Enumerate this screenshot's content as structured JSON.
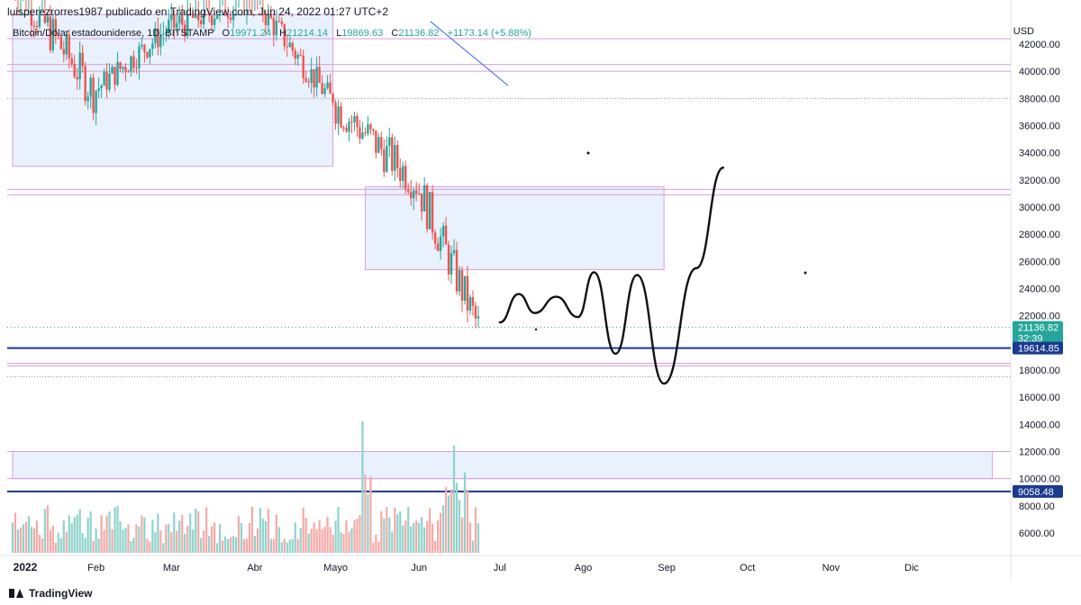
{
  "header": {
    "published": "luisperezrorres1987 publicado en TradingView.com, Jun 24, 2022 01:27 UTC+2",
    "symbol": "Bitcoin/Dólar estadounidense, 1D, BITSTAMP",
    "ohlc": {
      "o_label": "O",
      "o_value": "19971.24",
      "h_label": "H",
      "h_value": "21214.14",
      "l_label": "L",
      "l_value": "19869.63",
      "c_label": "C",
      "c_value": "21136.82",
      "change": "+1173.14 (+5.88%)"
    }
  },
  "currency": "USD",
  "footer": {
    "brand": "TradingView"
  },
  "colors": {
    "up": "#26a69a",
    "down": "#ef5350",
    "zone_fill": "#e9f1fc",
    "zone_border": "#d79ee0",
    "support_line": "#1a3a8f",
    "price_tag": "#26a69a",
    "drawing": "#111111"
  },
  "chart_data": {
    "type": "candlestick",
    "y_axis": {
      "ticks": [
        "42000.00",
        "40000.00",
        "38000.00",
        "36000.00",
        "34000.00",
        "32000.00",
        "30000.00",
        "28000.00",
        "26000.00",
        "24000.00",
        "22000.00",
        "18000.00",
        "16000.00",
        "14000.00",
        "12000.00",
        "10000.00",
        "8000.00",
        "6000.00"
      ],
      "range": [
        4500,
        44500
      ]
    },
    "x_axis": {
      "labels": [
        "2022",
        "Feb",
        "Mar",
        "Abr",
        "Mayo",
        "Jun",
        "Jul",
        "Ago",
        "Sep",
        "Oct",
        "Nov",
        "Dic"
      ]
    },
    "price_tags": [
      {
        "label": "21136.82",
        "sub": "32:39",
        "value": 21136.82
      },
      {
        "label": "19614.85",
        "value": 19614.85
      },
      {
        "label": "9058.48",
        "value": 9058.48
      }
    ],
    "horizontal_levels": [
      42400,
      40500,
      40000,
      38000,
      31300,
      30900,
      19614.85,
      18500,
      18300,
      17500,
      12000,
      10000,
      9058.48
    ],
    "zones": [
      {
        "from": "2022-01-01",
        "to": "2022-04-30",
        "low": 33000,
        "high": 44500
      },
      {
        "from": "2022-05-12",
        "to": "2022-08-31",
        "low": 25400,
        "high": 31500
      },
      {
        "from": "2022-01-01",
        "to": "2022-12-31",
        "low": 10000,
        "high": 12000
      }
    ],
    "candles_monthly_path": [
      {
        "month": "Ene",
        "open": 47000,
        "high": 47500,
        "low": 33000,
        "close": 38500
      },
      {
        "month": "Feb",
        "open": 38500,
        "high": 45500,
        "low": 36500,
        "close": 43200
      },
      {
        "month": "Mar",
        "open": 43200,
        "high": 48000,
        "low": 37200,
        "close": 45500
      },
      {
        "month": "Abr",
        "open": 45500,
        "high": 47400,
        "low": 37700,
        "close": 37700
      },
      {
        "month": "Mayo",
        "open": 37700,
        "high": 40000,
        "low": 26000,
        "close": 31800
      },
      {
        "month": "Jun",
        "open": 31800,
        "high": 32400,
        "low": 17600,
        "close": 21136.82
      }
    ],
    "volume_spikes": [
      {
        "date": "2022-05-11",
        "value": 14200
      },
      {
        "date": "2022-06-14",
        "value": 12400
      }
    ],
    "projection": [
      {
        "date": "2022-07-01",
        "value": 21500
      },
      {
        "date": "2022-07-08",
        "value": 23600
      },
      {
        "date": "2022-07-14",
        "value": 22200
      },
      {
        "date": "2022-07-22",
        "value": 23400
      },
      {
        "date": "2022-07-30",
        "value": 21900
      },
      {
        "date": "2022-08-05",
        "value": 25200
      },
      {
        "date": "2022-08-13",
        "value": 19200
      },
      {
        "date": "2022-08-21",
        "value": 25000
      },
      {
        "date": "2022-08-31",
        "value": 17000
      },
      {
        "date": "2022-09-12",
        "value": 25500
      },
      {
        "date": "2022-09-22",
        "value": 32900
      }
    ]
  }
}
